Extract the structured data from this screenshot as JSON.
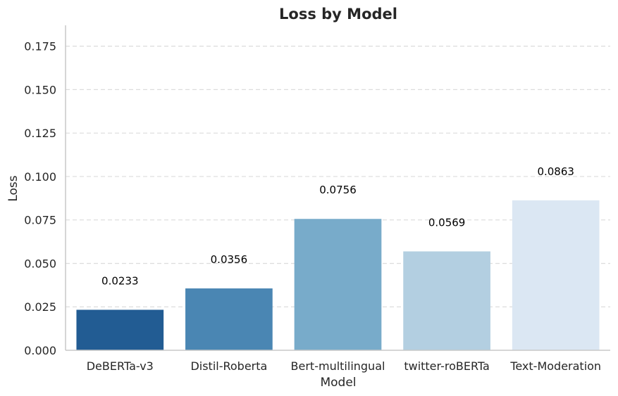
{
  "chart_data": {
    "type": "bar",
    "title": "Loss by Model",
    "xlabel": "Model",
    "ylabel": "Loss",
    "categories": [
      "DeBERTa-v3",
      "Distil-Roberta",
      "Bert-multilingual",
      "twitter-roBERTa",
      "Text-Moderation"
    ],
    "values": [
      0.0233,
      0.0356,
      0.0756,
      0.0569,
      0.0863
    ],
    "data_labels": [
      "0.0233",
      "0.0356",
      "0.0756",
      "0.0569",
      "0.0863"
    ],
    "colors": [
      "#225c93",
      "#4a86b3",
      "#78abca",
      "#b3cfe1",
      "#dbe7f3"
    ],
    "ylim": [
      0,
      0.187
    ],
    "yticks": [
      0.0,
      0.025,
      0.05,
      0.075,
      0.1,
      0.125,
      0.15,
      0.175
    ],
    "ytick_labels": [
      "0.000",
      "0.025",
      "0.050",
      "0.075",
      "0.100",
      "0.125",
      "0.150",
      "0.175"
    ],
    "grid": "y-dashed"
  }
}
